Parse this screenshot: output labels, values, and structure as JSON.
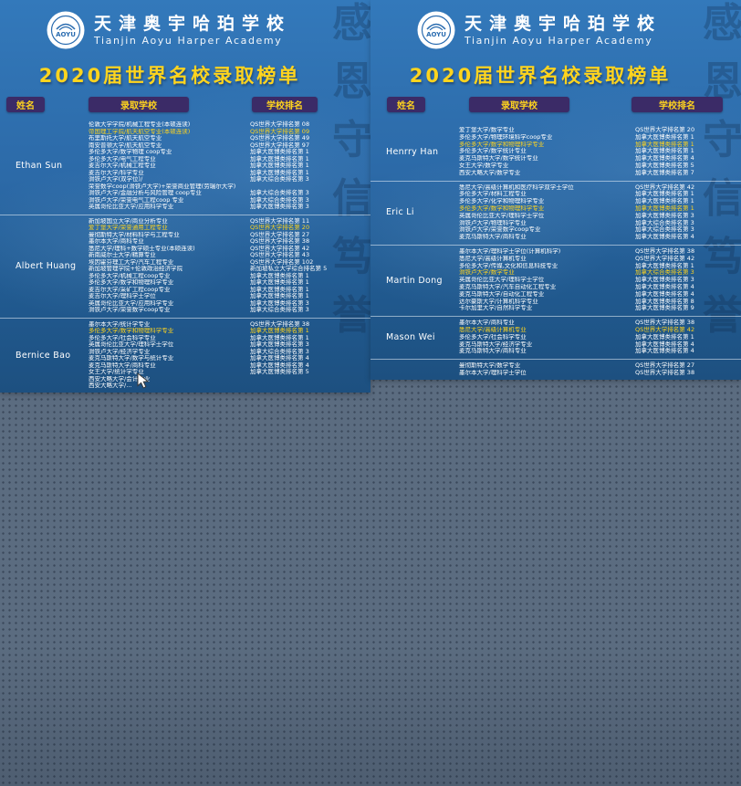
{
  "colors": {
    "poster_blue_top": "#3379bb",
    "poster_blue_bottom": "#1d5080",
    "accent_yellow": "#ffd41e",
    "badge_purple": "#3b2b67",
    "text_white": "#ffffff",
    "desktop_gray_blue": "#5b6c80"
  },
  "posters": [
    {
      "school_name_cn": "天津奥宇哈珀学校",
      "school_name_en": "Tianjin Aoyu Harper Academy",
      "logo_text": "AOYU",
      "title": "2020届世界名校录取榜单",
      "columns": {
        "name": "姓名",
        "school": "录取学校",
        "rank": "学校排名"
      },
      "watermark": [
        "感",
        "恩",
        "守",
        "信",
        "笃",
        "誉"
      ],
      "sections": [
        {
          "student": "Ethan Sun",
          "rows": [
            {
              "school": "伦敦大学学院/机械工程专业(本硕连读)",
              "rank": "QS世界大学排名第 08",
              "highlight": false
            },
            {
              "school": "帝国理工学院/航天航空专业(本硕连读)",
              "rank": "QS世界大学排名第 09",
              "highlight": true
            },
            {
              "school": "布里斯托大学/航天航空专业",
              "rank": "QS世界大学排名第 49",
              "highlight": false
            },
            {
              "school": "南安普顿大学/航天航空专业",
              "rank": "QS世界大学排名第 97",
              "highlight": false
            },
            {
              "school": "多伦多大学/数学物理 coop专业",
              "rank": "加拿大医博类排名第 1",
              "highlight": false
            },
            {
              "school": "多伦多大学/电气工程专业",
              "rank": "加拿大医博类排名第 1",
              "highlight": false
            },
            {
              "school": "麦吉尔大学/机械工程专业",
              "rank": "加拿大医博类排名第 1",
              "highlight": false
            },
            {
              "school": "麦吉尔大学/科学专业",
              "rank": "加拿大医博类排名第 1",
              "highlight": false
            },
            {
              "school": "滑铁卢大学(双学位)/",
              "rank": "加拿大综合类排名第 3",
              "highlight": false
            },
            {
              "school": "荣誉数学coop(滑铁卢大学)+荣誉商业管理(劳瑞尔大学)",
              "rank": "",
              "highlight": false
            },
            {
              "school": "滑铁卢大学/金融分析与风险管理 coop专业",
              "rank": "加拿大综合类排名第 3",
              "highlight": false
            },
            {
              "school": "滑铁卢大学/荣誉电气工程coop 专业",
              "rank": "加拿大综合类排名第 3",
              "highlight": false
            },
            {
              "school": "英属哥伦比亚大学/应用科学专业",
              "rank": "加拿大医博类排名第 3",
              "highlight": false
            }
          ]
        },
        {
          "student": "Albert Huang",
          "rows": [
            {
              "school": "新加坡国立大学/商业分析专业",
              "rank": "QS世界大学排名第 11",
              "highlight": false
            },
            {
              "school": "爱丁堡大学/荣誉通用工程专业",
              "rank": "QS世界大学排名第 20",
              "highlight": true
            },
            {
              "school": "曼彻斯特大学/材料科学与工程专业",
              "rank": "QS世界大学排名第 27",
              "highlight": false
            },
            {
              "school": "墨尔本大学/商科专业",
              "rank": "QS世界大学排名第 38",
              "highlight": false
            },
            {
              "school": "悉尼大学/理科+数学硕士专业(本硕连读)",
              "rank": "QS世界大学排名第 42",
              "highlight": false
            },
            {
              "school": "新南威尔士大学/精算专业",
              "rank": "QS世界大学排名第 43",
              "highlight": false
            },
            {
              "school": "埃因霍芬理工大学/汽车工程专业",
              "rank": "QS世界大学排名第 102",
              "highlight": false
            },
            {
              "school": "新加坡管理学院+伦敦政治经济学院",
              "rank": "新加坡私立大学综合排名第 5",
              "highlight": false
            },
            {
              "school": "多伦多大学/机械工程coop专业",
              "rank": "加拿大医博类排名第 1",
              "highlight": false
            },
            {
              "school": "多伦多大学/数学和物理科学专业",
              "rank": "加拿大医博类排名第 1",
              "highlight": false
            },
            {
              "school": "麦吉尔大学/采矿工程coop专业",
              "rank": "加拿大医博类排名第 1",
              "highlight": false
            },
            {
              "school": "麦吉尔大学/理科学士学位",
              "rank": "加拿大医博类排名第 1",
              "highlight": false
            },
            {
              "school": "英属哥伦比亚大学/应用科学专业",
              "rank": "加拿大医博类排名第 3",
              "highlight": false
            },
            {
              "school": "滑铁卢大学/荣誉数学coop专业",
              "rank": "加拿大综合类排名第 3",
              "highlight": false
            }
          ]
        },
        {
          "student": "Bernice Bao",
          "rows": [
            {
              "school": "墨尔本大学/统计学专业",
              "rank": "QS世界大学排名第 38",
              "highlight": false
            },
            {
              "school": "多伦多大学/数学和物理科学专业",
              "rank": "加拿大医博类排名第 1",
              "highlight": true
            },
            {
              "school": "多伦多大学/社会科学专业",
              "rank": "加拿大医博类排名第 1",
              "highlight": false
            },
            {
              "school": "英属哥伦比亚大学/理科学士学位",
              "rank": "加拿大医博类排名第 3",
              "highlight": false
            },
            {
              "school": "滑铁卢大学/经济学专业",
              "rank": "加拿大综合类排名第 3",
              "highlight": false
            },
            {
              "school": "麦克马斯特大学/数学与统计专业",
              "rank": "加拿大医博类排名第 4",
              "highlight": false
            },
            {
              "school": "麦克马斯特大学/商科专业",
              "rank": "加拿大医博类排名第 4",
              "highlight": false
            },
            {
              "school": "女王大学/统计学专业",
              "rank": "加拿大医博类排名第 5",
              "highlight": false
            },
            {
              "school": "西安大略大学/会计专业",
              "rank": "",
              "highlight": false
            },
            {
              "school": "西安大略大学/…",
              "rank": "",
              "highlight": false
            }
          ]
        }
      ]
    },
    {
      "school_name_cn": "天津奥宇哈珀学校",
      "school_name_en": "Tianjin Aoyu Harper Academy",
      "logo_text": "AOYU",
      "title": "2020届世界名校录取榜单",
      "columns": {
        "name": "姓名",
        "school": "录取学校",
        "rank": "学校排名"
      },
      "watermark": [
        "感",
        "恩",
        "守",
        "信",
        "笃",
        "誉"
      ],
      "sections": [
        {
          "student": "Henrry Han",
          "rows": [
            {
              "school": "爱丁堡大学/数学专业",
              "rank": "QS世界大学排名第 20",
              "highlight": false
            },
            {
              "school": "多伦多大学/物理环境科学coop专业",
              "rank": "加拿大医博类排名第 1",
              "highlight": false
            },
            {
              "school": "多伦多大学/数学和物理科学专业",
              "rank": "加拿大医博类排名第 1",
              "highlight": true
            },
            {
              "school": "多伦多大学/数学统计专业",
              "rank": "加拿大医博类排名第 1",
              "highlight": false
            },
            {
              "school": "麦克马斯特大学/数学统计专业",
              "rank": "加拿大医博类排名第 4",
              "highlight": false
            },
            {
              "school": "女王大学/数学专业",
              "rank": "加拿大医博类排名第 5",
              "highlight": false
            },
            {
              "school": "西安大略大学/数学专业",
              "rank": "加拿大医博类排名第 7",
              "highlight": false
            }
          ]
        },
        {
          "student": "Eric Li",
          "rows": [
            {
              "school": "悉尼大学/高级计算机和医疗科学双学士学位",
              "rank": "QS世界大学排名第 42",
              "highlight": false
            },
            {
              "school": "多伦多大学/材料工程专业",
              "rank": "加拿大医博类排名第 1",
              "highlight": false
            },
            {
              "school": "多伦多大学/化学和物理科学专业",
              "rank": "加拿大医博类排名第 1",
              "highlight": false
            },
            {
              "school": "多伦多大学/数学和物理科学专业",
              "rank": "加拿大医博类排名第 1",
              "highlight": true
            },
            {
              "school": "英属哥伦比亚大学/理科学士学位",
              "rank": "加拿大医博类排名第 3",
              "highlight": false
            },
            {
              "school": "滑铁卢大学/物理科学专业",
              "rank": "加拿大综合类排名第 3",
              "highlight": false
            },
            {
              "school": "滑铁卢大学/荣誉数学coop专业",
              "rank": "加拿大综合类排名第 3",
              "highlight": false
            },
            {
              "school": "麦克马斯特大学/商科专业",
              "rank": "加拿大医博类排名第 4",
              "highlight": false
            }
          ]
        },
        {
          "student": "Martin Dong",
          "rows": [
            {
              "school": "墨尔本大学/理科学士学位(计算机科学)",
              "rank": "QS世界大学排名第 38",
              "highlight": false
            },
            {
              "school": "悉尼大学/高级计算机专业",
              "rank": "QS世界大学排名第 42",
              "highlight": false
            },
            {
              "school": "多伦多大学/传媒,文化和信息科技专业",
              "rank": "加拿大医博类排名第 1",
              "highlight": false
            },
            {
              "school": "滑铁卢大学/数学专业",
              "rank": "加拿大综合类排名第 3",
              "highlight": true
            },
            {
              "school": "英属哥伦比亚大学/理科学士学位",
              "rank": "加拿大医博类排名第 3",
              "highlight": false
            },
            {
              "school": "麦克马斯特大学/汽车自动化工程专业",
              "rank": "加拿大医博类排名第 4",
              "highlight": false
            },
            {
              "school": "麦克马斯特大学/自动化工程专业",
              "rank": "加拿大医博类排名第 4",
              "highlight": false
            },
            {
              "school": "达尔豪斯大学/计算机科学专业",
              "rank": "加拿大医博类排名第 8",
              "highlight": false
            },
            {
              "school": "卡尔加里大学/自然科学专业",
              "rank": "加拿大医博类排名第 9",
              "highlight": false
            }
          ]
        },
        {
          "student": "Mason  Wei",
          "rows": [
            {
              "school": "墨尔本大学/商科专业",
              "rank": "QS世界大学排名第 38",
              "highlight": false
            },
            {
              "school": "悉尼大学/高级计算机专业",
              "rank": "QS世界大学排名第 42",
              "highlight": true
            },
            {
              "school": "多伦多大学/社会科学专业",
              "rank": "加拿大医博类排名第 1",
              "highlight": false
            },
            {
              "school": "麦克马斯特大学/经济学专业",
              "rank": "加拿大医博类排名第 4",
              "highlight": false
            },
            {
              "school": "麦克马斯特大学/商科专业",
              "rank": "加拿大医博类排名第 4",
              "highlight": false
            }
          ]
        },
        {
          "student": "",
          "rows": [
            {
              "school": "曼彻斯特大学/数学专业",
              "rank": "QS世界大学排名第 27",
              "highlight": false
            },
            {
              "school": "墨尔本大学/理科学士学位",
              "rank": "QS世界大学排名第 38",
              "highlight": false
            }
          ]
        }
      ]
    }
  ]
}
